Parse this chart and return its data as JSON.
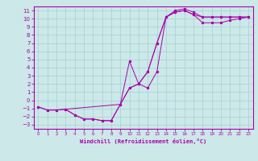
{
  "background_color": "#cce8e8",
  "grid_color": "#aad4d4",
  "line_color": "#aa00aa",
  "marker_color": "#aa00aa",
  "xlabel": "Windchill (Refroidissement éolien,°C)",
  "xlim": [
    -0.5,
    23.5
  ],
  "ylim": [
    -3.5,
    11.5
  ],
  "xticks": [
    0,
    1,
    2,
    3,
    4,
    5,
    6,
    7,
    8,
    9,
    10,
    11,
    12,
    13,
    14,
    15,
    16,
    17,
    18,
    19,
    20,
    21,
    22,
    23
  ],
  "yticks": [
    -3,
    -2,
    -1,
    0,
    1,
    2,
    3,
    4,
    5,
    6,
    7,
    8,
    9,
    10,
    11
  ],
  "curve1_x": [
    0,
    1,
    2,
    3,
    4,
    5,
    6,
    7,
    8,
    9,
    10,
    11,
    12,
    13,
    14,
    15,
    16,
    17,
    18,
    19,
    20,
    21,
    22,
    23
  ],
  "curve1_y": [
    -0.8,
    -1.2,
    -1.2,
    -1.1,
    -1.8,
    -2.3,
    -2.3,
    -2.5,
    -2.5,
    -0.5,
    1.5,
    2.0,
    3.5,
    7.0,
    10.2,
    11.0,
    11.2,
    10.8,
    10.2,
    10.2,
    10.2,
    10.2,
    10.2,
    10.2
  ],
  "curve2_x": [
    0,
    1,
    2,
    3,
    4,
    5,
    6,
    7,
    8,
    9,
    10,
    11,
    12,
    13,
    14,
    15,
    16,
    17,
    18,
    19,
    20,
    21,
    22,
    23
  ],
  "curve2_y": [
    -0.8,
    -1.2,
    -1.2,
    -1.1,
    -1.8,
    -2.3,
    -2.3,
    -2.5,
    -2.5,
    -0.5,
    4.8,
    2.0,
    1.5,
    3.5,
    10.2,
    10.8,
    11.0,
    10.5,
    10.2,
    10.2,
    10.2,
    10.2,
    10.2,
    10.2
  ],
  "curve3_x": [
    3,
    9,
    10,
    11,
    12,
    13,
    14,
    15,
    16,
    17,
    18,
    19,
    20,
    21,
    22,
    23
  ],
  "curve3_y": [
    -1.1,
    -0.5,
    1.5,
    2.0,
    3.5,
    7.0,
    10.2,
    10.8,
    11.0,
    10.5,
    9.5,
    9.5,
    9.5,
    9.8,
    10.0,
    10.2
  ]
}
